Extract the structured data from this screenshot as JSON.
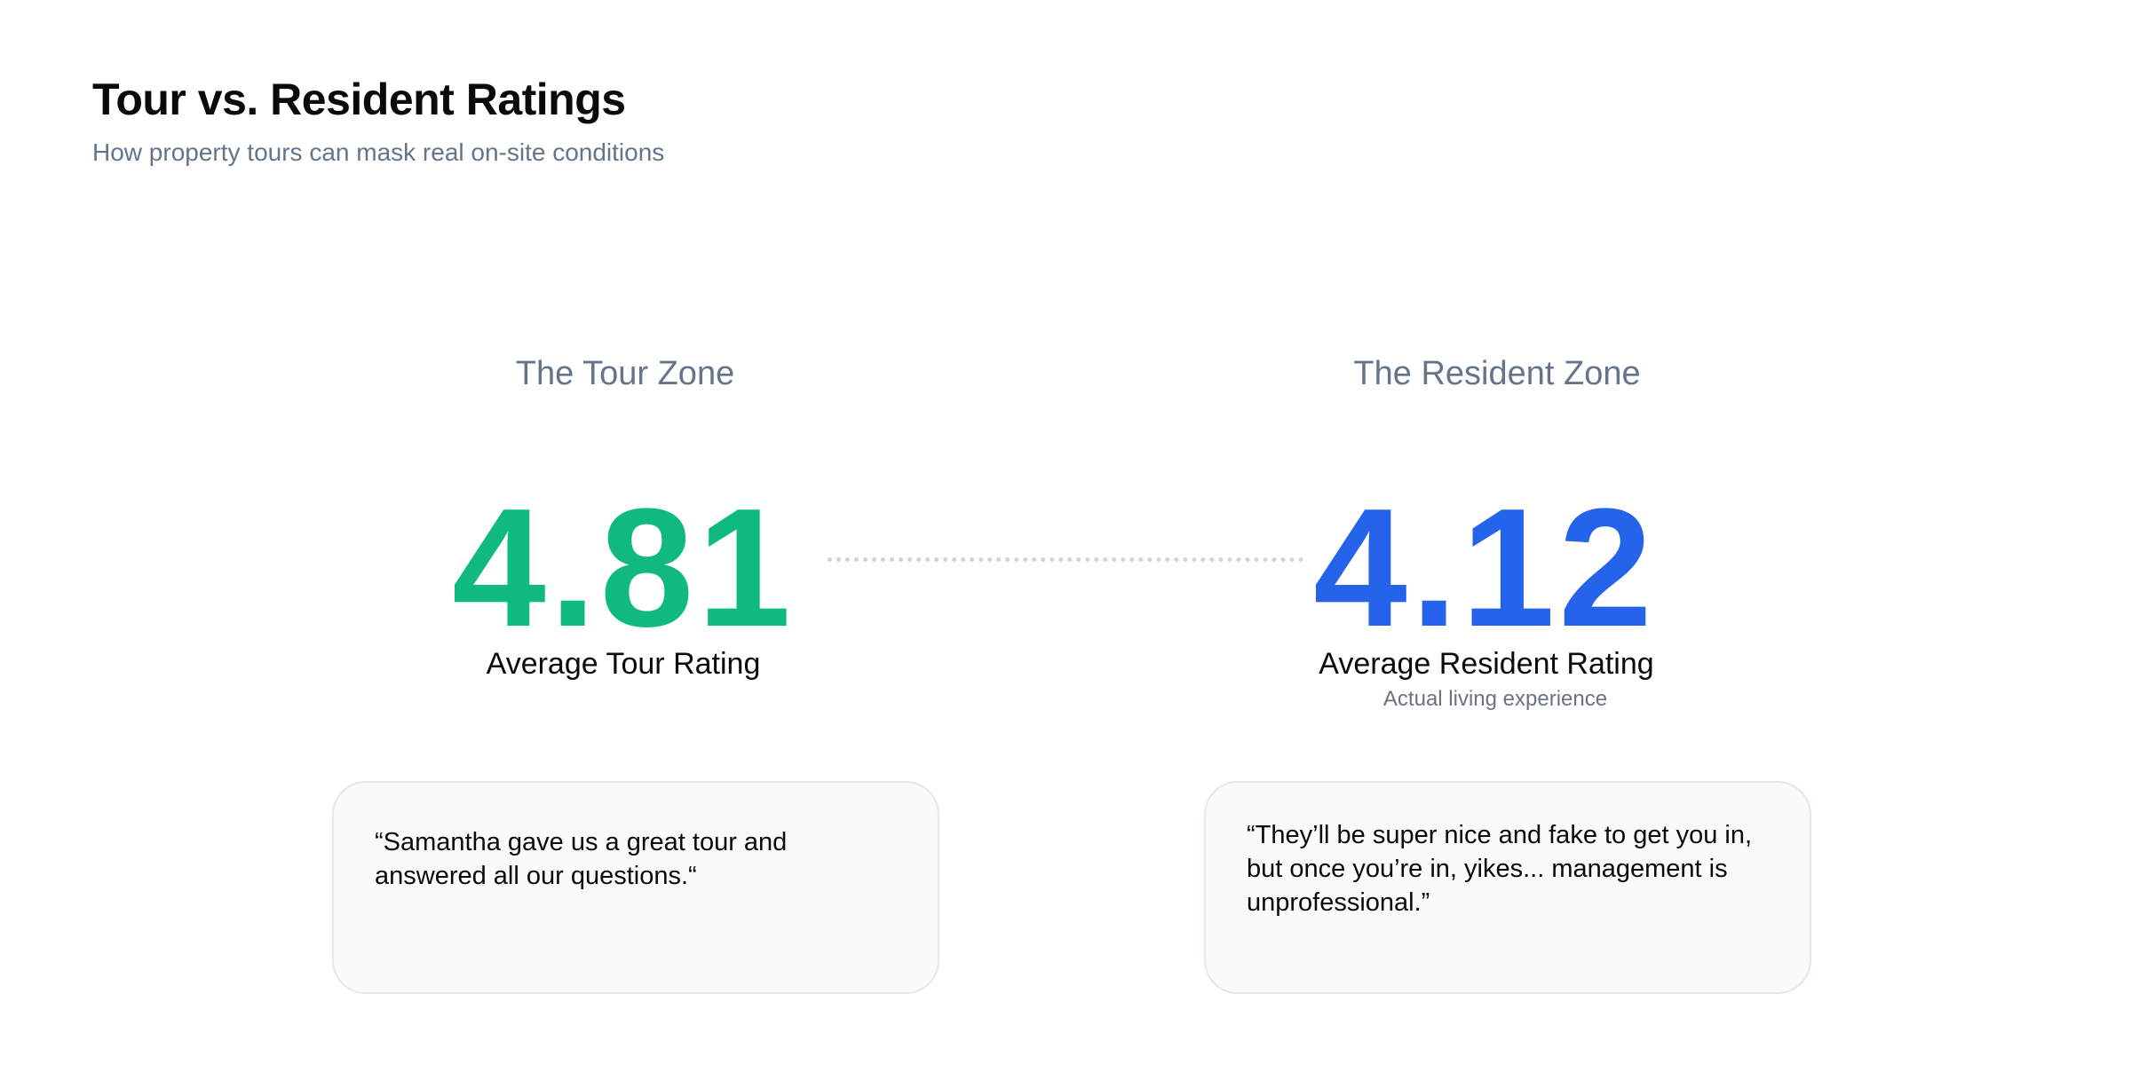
{
  "header": {
    "title": "Tour vs. Resident Ratings",
    "subtitle": "How property tours can mask real on-site conditions"
  },
  "tour_zone": {
    "heading": "The Tour Zone",
    "rating": "4.81",
    "rating_label": "Average Tour Rating",
    "quote": "“Samantha gave us a great tour and answered all our questions.“",
    "accent_color": "#10b981"
  },
  "resident_zone": {
    "heading": "The Resident Zone",
    "rating": "4.12",
    "rating_label": "Average Resident Rating",
    "rating_note": "Actual living experience",
    "quote": "“They’ll be super nice and fake to get you in, but once you’re in, yikes... management is unprofessional.”",
    "accent_color": "#2563eb"
  }
}
